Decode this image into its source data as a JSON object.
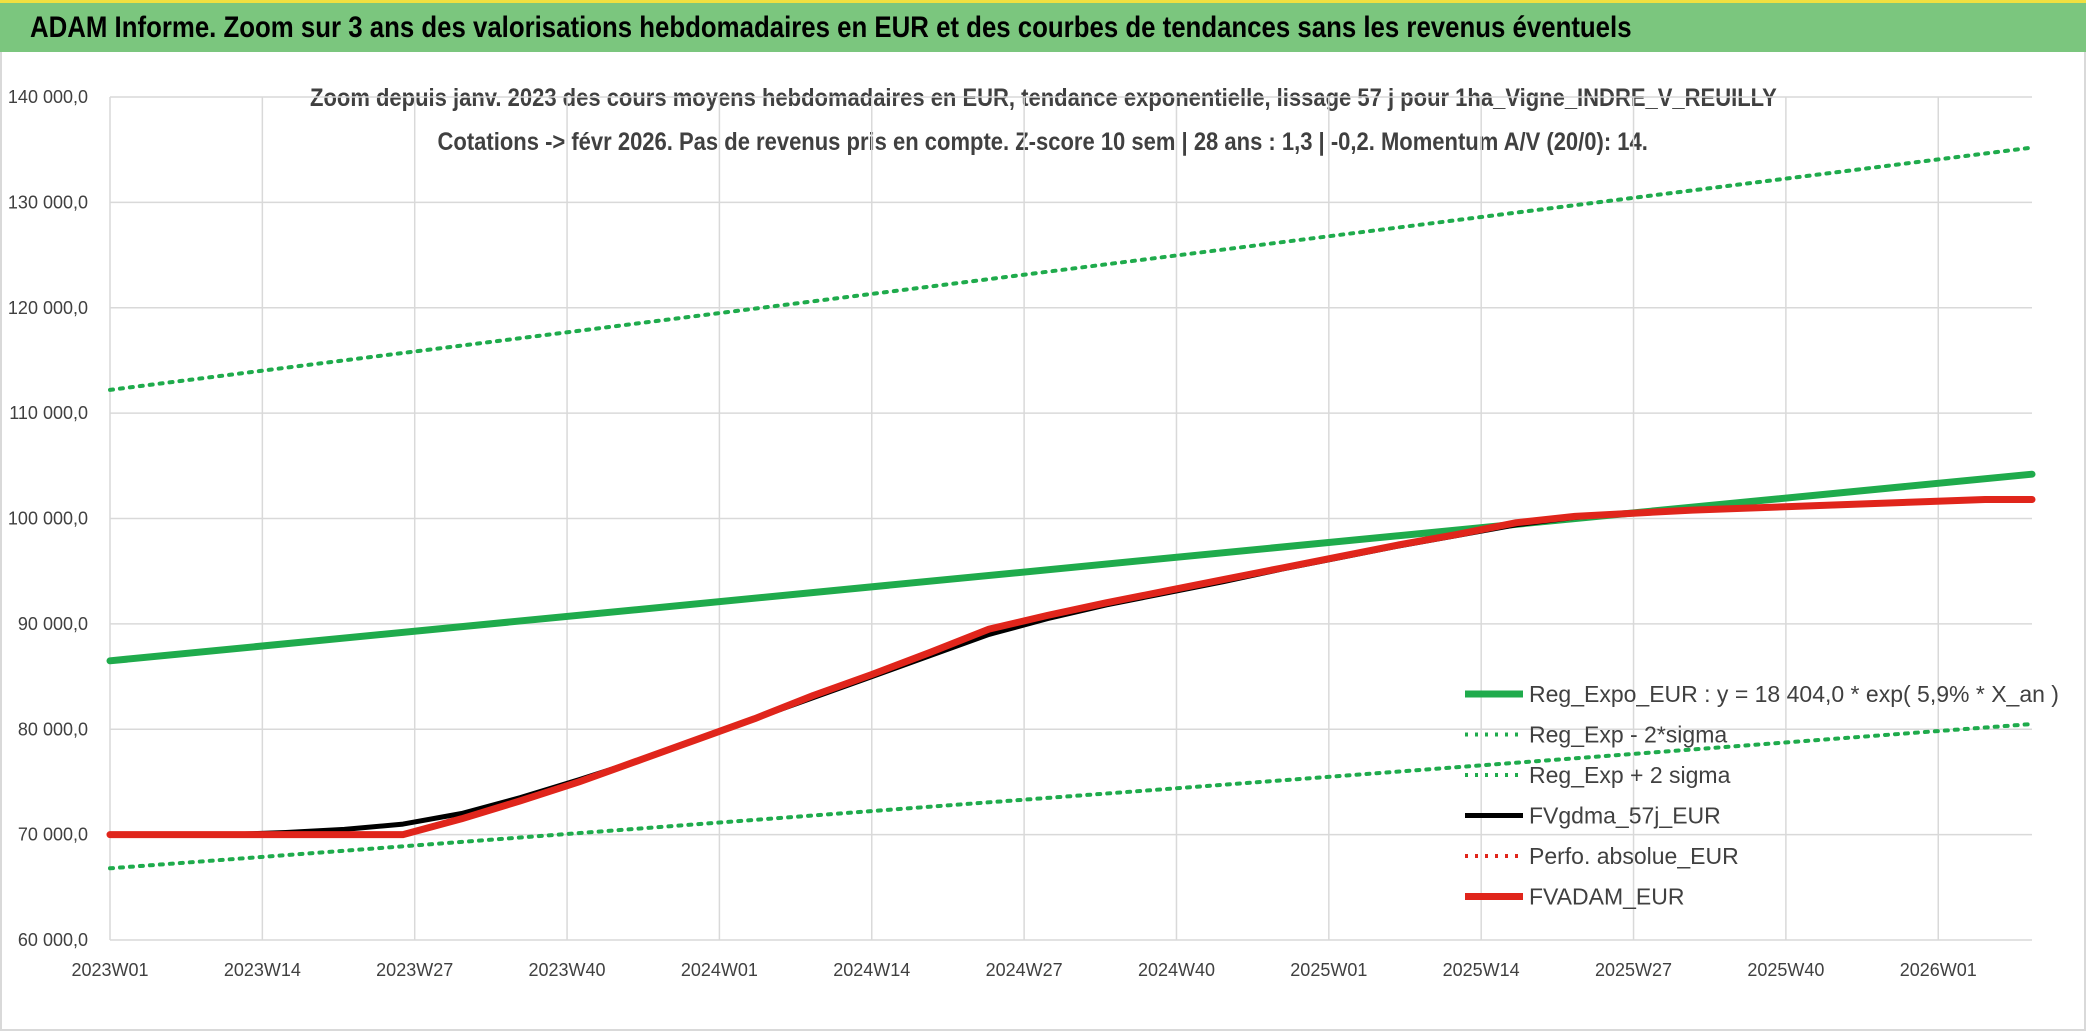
{
  "banner": {
    "title": "ADAM Informe. Zoom sur 3 ans des valorisations hebdomadaires en EUR et des courbes de tendances sans les revenus éventuels"
  },
  "chart_data": {
    "type": "line",
    "title": "Zoom depuis janv. 2023 des cours moyens hebdomadaires en EUR, tendance exponentielle, lissage 57 j pour 1ha_Vigne_INDRE_V_REUILLY",
    "subtitle": "Cotations -> févr 2026. Pas de revenus pris en compte. Z-score 10 sem | 28 ans : 1,3 | -0,2. Momentum A/V (20/0): 14.",
    "xlabel": "",
    "ylabel": "",
    "x_ticks": [
      "2023W01",
      "2023W14",
      "2023W27",
      "2023W40",
      "2024W01",
      "2024W14",
      "2024W27",
      "2024W40",
      "2025W01",
      "2025W14",
      "2025W27",
      "2025W40",
      "2026W01"
    ],
    "y_ticks": [
      "60 000,0",
      "70 000,0",
      "80 000,0",
      "90 000,0",
      "100 000,0",
      "110 000,0",
      "120 000,0",
      "130 000,0",
      "140 000,0"
    ],
    "ylim": [
      60000,
      140000
    ],
    "xlim_weeks": [
      0,
      164
    ],
    "grid": true,
    "legend_position": "bottom-right",
    "series": [
      {
        "name": "Reg_Expo_EUR : y = 18 404,0 * exp( 5,9% *  X_an )",
        "color": "#1fab4c",
        "style": "solid-thick",
        "x": [
          0,
          164
        ],
        "values": [
          86500,
          104200
        ]
      },
      {
        "name": "Reg_Exp - 2*sigma",
        "color": "#1fab4c",
        "style": "dotted",
        "x": [
          0,
          164
        ],
        "values": [
          66800,
          80500
        ]
      },
      {
        "name": "Reg_Exp + 2 sigma",
        "color": "#1fab4c",
        "style": "dotted",
        "x": [
          0,
          164
        ],
        "values": [
          112200,
          135200
        ]
      },
      {
        "name": "FVgdma_57j_EUR",
        "color": "#000000",
        "style": "solid",
        "x": [
          0,
          5,
          10,
          15,
          20,
          25,
          30,
          35,
          40,
          45,
          50,
          55,
          60,
          65,
          70,
          75,
          80,
          85,
          90,
          95,
          100,
          105,
          110,
          115,
          120,
          125,
          130,
          135,
          140,
          145,
          150,
          155,
          160,
          164
        ],
        "values": [
          70000,
          70000,
          70000,
          70200,
          70500,
          71000,
          72000,
          73500,
          75200,
          77000,
          79000,
          81000,
          83000,
          85000,
          87000,
          89000,
          90500,
          91800,
          92900,
          94000,
          95200,
          96300,
          97400,
          98400,
          99400,
          100100,
          100500,
          100800,
          101000,
          101200,
          101400,
          101600,
          101800,
          101800
        ]
      },
      {
        "name": "Perfo. absolue_EUR",
        "color": "#e0251b",
        "style": "dotted",
        "x": [],
        "values": []
      },
      {
        "name": "FVADAM_EUR",
        "color": "#e0251b",
        "style": "solid-thick",
        "x": [
          0,
          5,
          10,
          15,
          20,
          25,
          30,
          35,
          40,
          45,
          50,
          55,
          60,
          65,
          70,
          75,
          80,
          85,
          90,
          95,
          100,
          105,
          110,
          115,
          120,
          125,
          130,
          135,
          140,
          145,
          150,
          155,
          160,
          164
        ],
        "values": [
          70000,
          70000,
          70000,
          70000,
          70000,
          70000,
          71500,
          73200,
          75000,
          77000,
          79000,
          81000,
          83200,
          85200,
          87300,
          89500,
          90800,
          92000,
          93100,
          94200,
          95300,
          96400,
          97500,
          98500,
          99600,
          100200,
          100500,
          100800,
          101000,
          101200,
          101400,
          101600,
          101800,
          101800
        ]
      }
    ]
  }
}
